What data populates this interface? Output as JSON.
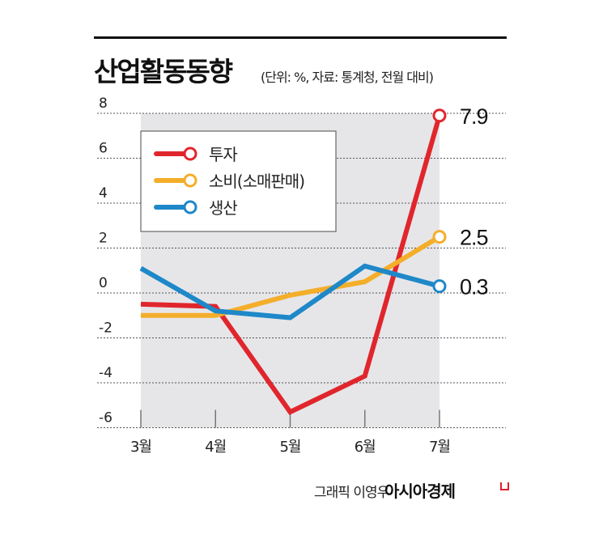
{
  "header": {
    "title": "산업활동동향",
    "subtitle": "(단위: %, 자료: 통계청, 전월 대비)"
  },
  "footer": {
    "credit": "그래픽 이영우",
    "brand": "아시아경제"
  },
  "chart_data": {
    "type": "line",
    "title": "산업활동동향",
    "categories": [
      "3월",
      "4월",
      "5월",
      "6월",
      "7월"
    ],
    "ylim": [
      -6,
      8
    ],
    "yticks": [
      8,
      6,
      4,
      2,
      0,
      -2,
      -4,
      -6
    ],
    "ytick_labels": [
      "8",
      "6",
      "4",
      "2",
      "0",
      "-2",
      "-4",
      "-6"
    ],
    "grid": true,
    "legend_placement": "top-left",
    "series": [
      {
        "name": "투자",
        "color": "#e0262c",
        "values": [
          -0.5,
          -0.6,
          -5.3,
          -3.7,
          7.9
        ],
        "end_label": "7.9"
      },
      {
        "name": "소비(소매판매)",
        "color": "#f4ae2a",
        "values": [
          -1.0,
          -1.0,
          -0.1,
          0.5,
          2.5
        ],
        "end_label": "2.5"
      },
      {
        "name": "생산",
        "color": "#1e88c8",
        "values": [
          1.1,
          -0.8,
          -1.1,
          1.2,
          0.3
        ],
        "end_label": "0.3"
      }
    ]
  }
}
